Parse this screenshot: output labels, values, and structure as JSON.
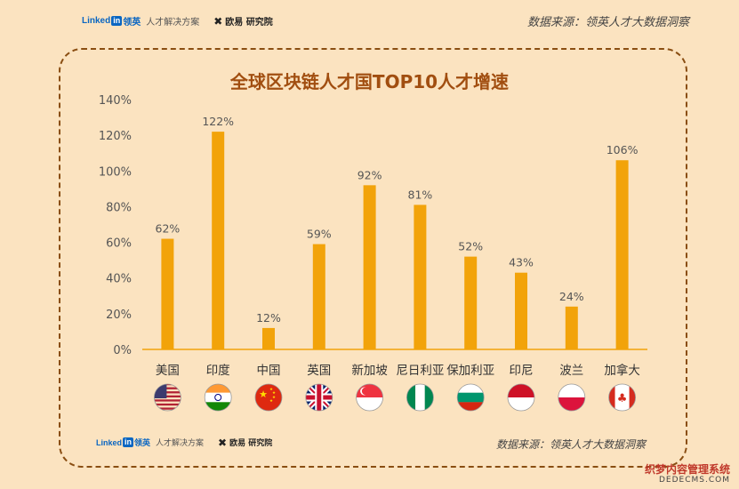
{
  "header": {
    "linkedin_prefix": "Linked",
    "linkedin_box": "in",
    "linkedin_cn": "领英",
    "tagline": "人才解决方案",
    "partner_mark": "✖",
    "partner": "欧易 研究院",
    "source": "数据来源：领英人才大数据洞察"
  },
  "footer": {
    "linkedin_prefix": "Linked",
    "linkedin_box": "in",
    "linkedin_cn": "领英",
    "tagline": "人才解决方案",
    "partner_mark": "✖",
    "partner": "欧易 研究院",
    "source": "数据来源：领英人才大数据洞察"
  },
  "watermark": {
    "line1": "织梦内容管理系统",
    "line2": "DEDECMS.COM"
  },
  "colors": {
    "bar": "#f2a30a",
    "title": "#a14e10",
    "frame": "#8a4e12",
    "background": "#fbe3c0"
  },
  "chart_data": {
    "type": "bar",
    "title": "全球区块链人才国TOP10人才增速",
    "categories": [
      "美国",
      "印度",
      "中国",
      "英国",
      "新加坡",
      "尼日利亚",
      "保加利亚",
      "印尼",
      "波兰",
      "加拿大"
    ],
    "values": [
      62,
      122,
      12,
      59,
      92,
      81,
      52,
      43,
      24,
      106
    ],
    "value_labels": [
      "62%",
      "122%",
      "12%",
      "59%",
      "92%",
      "81%",
      "52%",
      "43%",
      "24%",
      "106%"
    ],
    "ylim": [
      0,
      140
    ],
    "yticks": [
      "0%",
      "20%",
      "40%",
      "60%",
      "80%",
      "100%",
      "120%",
      "140%"
    ],
    "ytick_values": [
      0,
      20,
      40,
      60,
      80,
      100,
      120,
      140
    ],
    "grid": false,
    "flag_icons": [
      "us-flag-icon",
      "india-flag-icon",
      "china-flag-icon",
      "uk-flag-icon",
      "singapore-flag-icon",
      "nigeria-flag-icon",
      "bulgaria-flag-icon",
      "indonesia-flag-icon",
      "poland-flag-icon",
      "canada-flag-icon"
    ]
  }
}
